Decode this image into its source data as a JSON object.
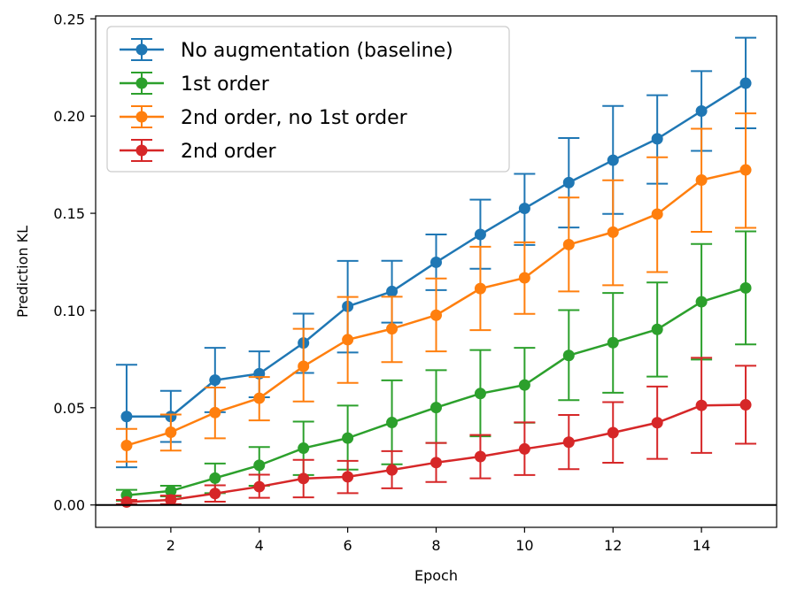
{
  "chart_data": {
    "type": "line",
    "xlabel": "Epoch",
    "ylabel": "Prediction KL",
    "xlim": [
      0.3,
      15.7
    ],
    "ylim": [
      -0.0115,
      0.2515
    ],
    "xticks": [
      2,
      4,
      6,
      8,
      10,
      12,
      14
    ],
    "xtick_labels": [
      "2",
      "4",
      "6",
      "8",
      "10",
      "12",
      "14"
    ],
    "yticks": [
      0.0,
      0.05,
      0.1,
      0.15,
      0.2,
      0.25
    ],
    "ytick_labels": [
      "0.00",
      "0.05",
      "0.10",
      "0.15",
      "0.20",
      "0.25"
    ],
    "grid": false,
    "legend_position": "top-left",
    "reference_line_y": 0.0,
    "x": [
      1,
      2,
      3,
      4,
      5,
      6,
      7,
      8,
      9,
      10,
      11,
      12,
      13,
      14,
      15
    ],
    "series": [
      {
        "name": "No augmentation (baseline)",
        "color": "#1f77b4",
        "values": [
          0.0455,
          0.0455,
          0.0642,
          0.0675,
          0.0833,
          0.1021,
          0.1098,
          0.1248,
          0.1391,
          0.1525,
          0.1658,
          0.1773,
          0.1883,
          0.2026,
          0.2169
        ],
        "err_lower": [
          0.0194,
          0.0324,
          0.0477,
          0.0554,
          0.0679,
          0.0784,
          0.0938,
          0.1105,
          0.1215,
          0.1337,
          0.1427,
          0.1497,
          0.1652,
          0.1821,
          0.1937
        ],
        "err_upper": [
          0.0721,
          0.0587,
          0.0808,
          0.079,
          0.0984,
          0.1255,
          0.1256,
          0.1391,
          0.157,
          0.1703,
          0.1887,
          0.2052,
          0.2107,
          0.2231,
          0.2403
        ]
      },
      {
        "name": "1st order",
        "color": "#2ca02c",
        "values": [
          0.005,
          0.0072,
          0.0138,
          0.0204,
          0.0292,
          0.0344,
          0.0424,
          0.0501,
          0.0573,
          0.0617,
          0.0769,
          0.0835,
          0.0903,
          0.1045,
          0.1116
        ],
        "err_lower": [
          0.0022,
          0.0044,
          0.0061,
          0.0099,
          0.0154,
          0.0182,
          0.0209,
          0.0319,
          0.0353,
          0.0423,
          0.0539,
          0.0577,
          0.066,
          0.0748,
          0.0826
        ],
        "err_upper": [
          0.0078,
          0.0099,
          0.0213,
          0.0298,
          0.0429,
          0.0511,
          0.0641,
          0.0693,
          0.0797,
          0.0808,
          0.1002,
          0.109,
          0.1144,
          0.1342,
          0.1407
        ]
      },
      {
        "name": "2nd order, no 1st order",
        "color": "#ff7f0e",
        "values": [
          0.0306,
          0.0374,
          0.0475,
          0.0549,
          0.0713,
          0.085,
          0.0906,
          0.0976,
          0.1113,
          0.1168,
          0.1339,
          0.1403,
          0.1496,
          0.1671,
          0.1723
        ],
        "err_lower": [
          0.0223,
          0.028,
          0.0343,
          0.0435,
          0.0532,
          0.0628,
          0.0735,
          0.079,
          0.0899,
          0.0983,
          0.1098,
          0.113,
          0.1198,
          0.1405,
          0.1425
        ],
        "err_upper": [
          0.0391,
          0.0465,
          0.0604,
          0.0658,
          0.0906,
          0.107,
          0.1071,
          0.1165,
          0.1328,
          0.1351,
          0.1581,
          0.167,
          0.1788,
          0.1935,
          0.2014
        ]
      },
      {
        "name": "2nd order",
        "color": "#d62728",
        "values": [
          0.0015,
          0.0026,
          0.0059,
          0.0094,
          0.0136,
          0.0145,
          0.018,
          0.0218,
          0.0249,
          0.0288,
          0.0323,
          0.0372,
          0.0423,
          0.0512,
          0.0515
        ],
        "err_lower": [
          0.0004,
          0.0004,
          0.0017,
          0.0037,
          0.0039,
          0.0061,
          0.0086,
          0.0118,
          0.0137,
          0.0154,
          0.0184,
          0.0217,
          0.0237,
          0.0268,
          0.0315
        ],
        "err_upper": [
          0.0026,
          0.0048,
          0.0101,
          0.0156,
          0.0232,
          0.0227,
          0.0277,
          0.0319,
          0.036,
          0.0425,
          0.0463,
          0.0529,
          0.0609,
          0.0757,
          0.0716
        ]
      }
    ]
  }
}
